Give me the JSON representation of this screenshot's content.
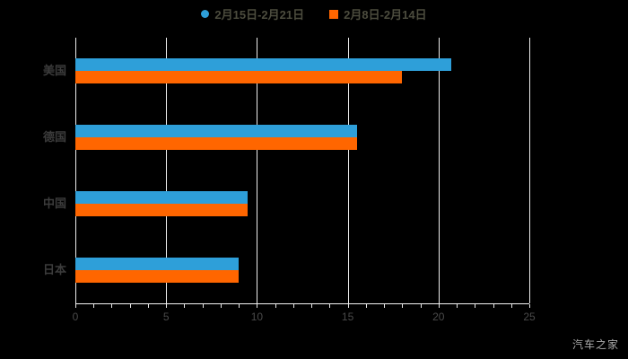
{
  "chart_data": {
    "type": "bar",
    "orientation": "horizontal",
    "title": "",
    "categories": [
      "美国",
      "德国",
      "中国",
      "日本"
    ],
    "series": [
      {
        "name": "2月15日-2月21日",
        "color": "#2E9FD9",
        "marker": "dot",
        "values": [
          20.7,
          15.5,
          9.5,
          9.0
        ]
      },
      {
        "name": "2月8日-2月14日",
        "color": "#FF6600",
        "marker": "square",
        "values": [
          18.0,
          15.5,
          9.5,
          9.0
        ]
      }
    ],
    "xlim": [
      0,
      25
    ],
    "xticks": [
      0,
      5,
      10,
      15,
      20,
      25
    ],
    "minor_tick_step": 1,
    "grid": true,
    "legend_position": "top",
    "background_color": "#000000",
    "grid_color": "#ececec"
  },
  "watermark": "汽车之家"
}
